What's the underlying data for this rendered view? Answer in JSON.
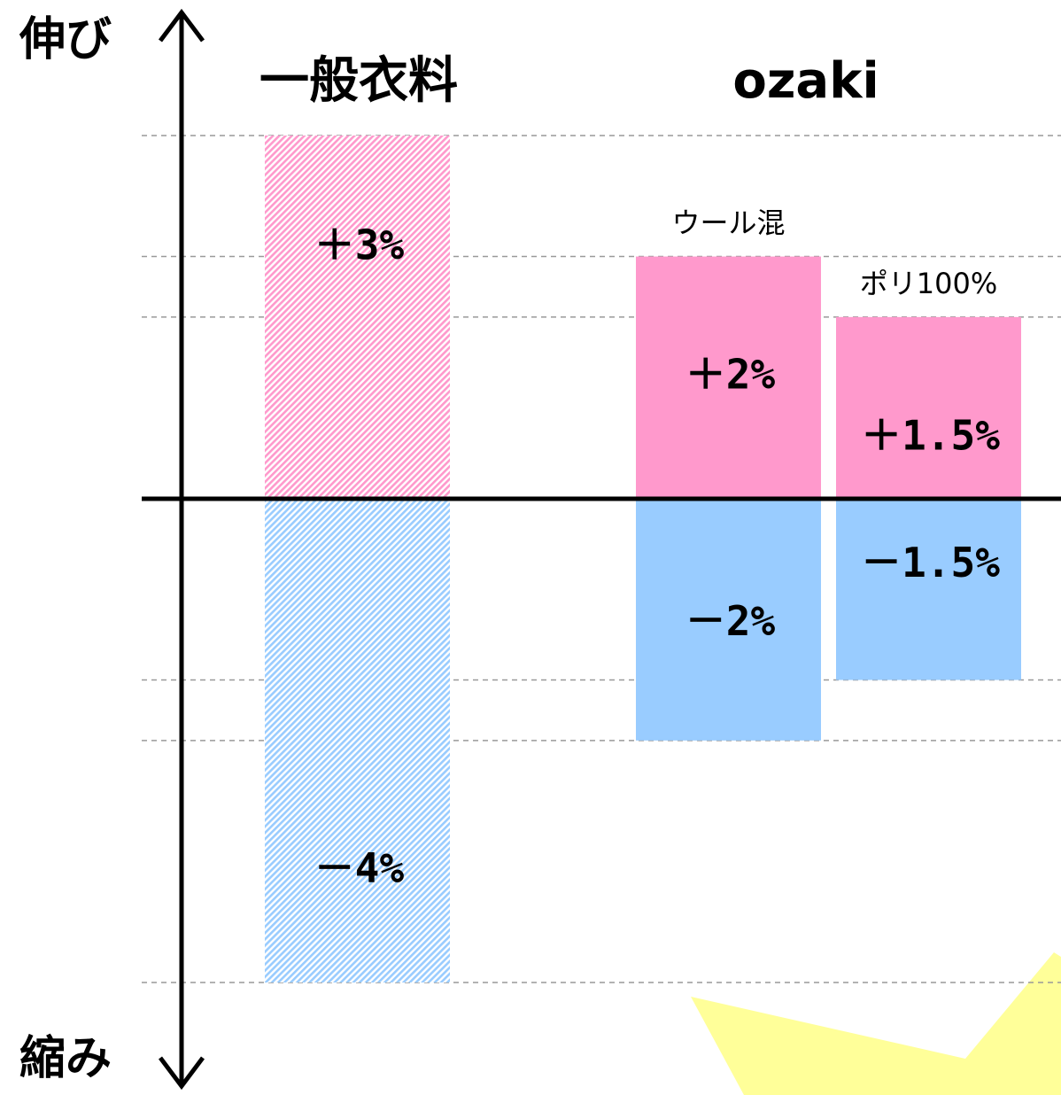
{
  "chart_data": {
    "type": "bar",
    "y_axis_top_label": "伸び",
    "y_axis_bottom_label": "縮み",
    "ylim": [
      -4.93,
      4.12
    ],
    "grid_lines": [
      3,
      2,
      1.5,
      -1.5,
      -2,
      -4
    ],
    "positive_color": "#ff99cc",
    "negative_color": "#99ccff",
    "groups": [
      {
        "label": "一般衣料",
        "bars": [
          {
            "values": [
              3,
              -4
            ],
            "value_labels": [
              "＋3%",
              "－4%"
            ],
            "hatched": true
          }
        ]
      },
      {
        "label": "ozaki",
        "bars": [
          {
            "name": "ウール混",
            "values": [
              2,
              -2
            ],
            "value_labels": [
              "＋2%",
              "－2%"
            ],
            "hatched": false
          },
          {
            "name": "ポリ100%",
            "values": [
              1.5,
              -1.5
            ],
            "value_labels": [
              "＋1.5%",
              "－1.5%"
            ],
            "hatched": false
          }
        ]
      }
    ]
  }
}
